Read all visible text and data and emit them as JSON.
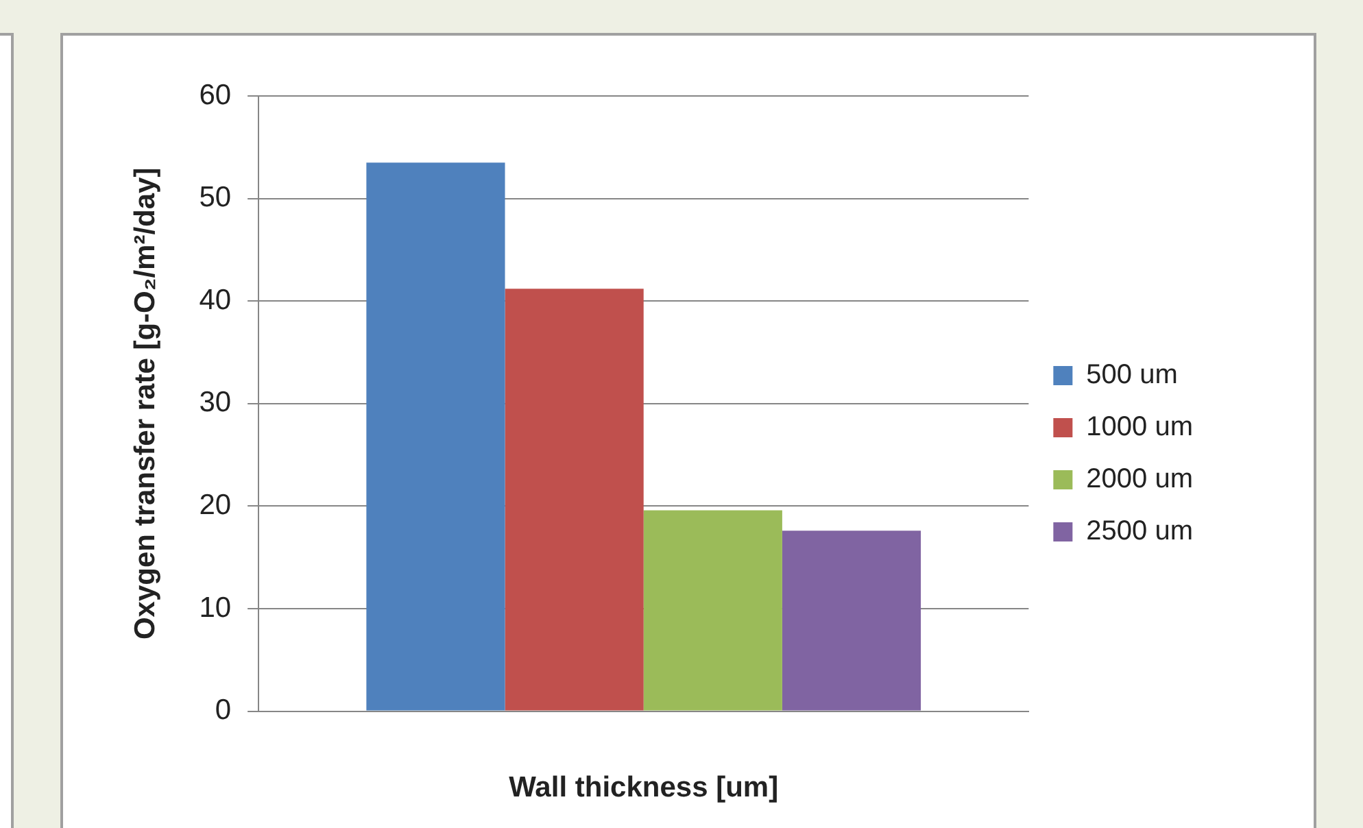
{
  "chart_data": {
    "type": "bar",
    "xlabel": "Wall thickness [um]",
    "ylabel": "Oxygen transfer rate [g-O₂/m²/day]",
    "categories": [
      null
    ],
    "series": [
      {
        "name": "500 um",
        "color": "#4f81bd",
        "values": [
          53.5
        ]
      },
      {
        "name": "1000 um",
        "color": "#c0504d",
        "values": [
          41.2
        ]
      },
      {
        "name": "2000 um",
        "color": "#9bbb59",
        "values": [
          19.6
        ]
      },
      {
        "name": "2500 um",
        "color": "#8064a2",
        "values": [
          17.6
        ]
      }
    ],
    "ylim": [
      0,
      60
    ],
    "yticks": [
      0,
      10,
      20,
      30,
      40,
      50,
      60
    ],
    "grid": "y",
    "legend": "right"
  }
}
